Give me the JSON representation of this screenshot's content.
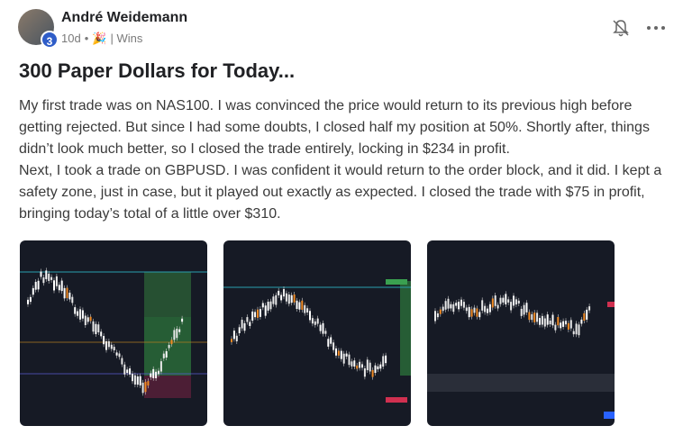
{
  "post": {
    "author": "André Weidemann",
    "badge": "3",
    "meta": {
      "time": "10d",
      "separator": "•",
      "icon": "🎉",
      "category": "| Wins"
    },
    "title": "300 Paper Dollars for Today...",
    "paragraphs": [
      "My first trade was on NAS100. I was convinced the price would return to its previous high before getting rejected. But since I had some doubts, I closed half my position at 50%. Shortly after, things didn’t look much better, so I closed the trade entirely, locking in $234 in profit.",
      "Next, I took a trade on GBPUSD. I was confident it would return to the order block, and it did. I kept a safety zone, just in case, but it played out exactly as expected. I closed the trade with $75 in profit, bringing today’s total of a little over $310."
    ]
  }
}
